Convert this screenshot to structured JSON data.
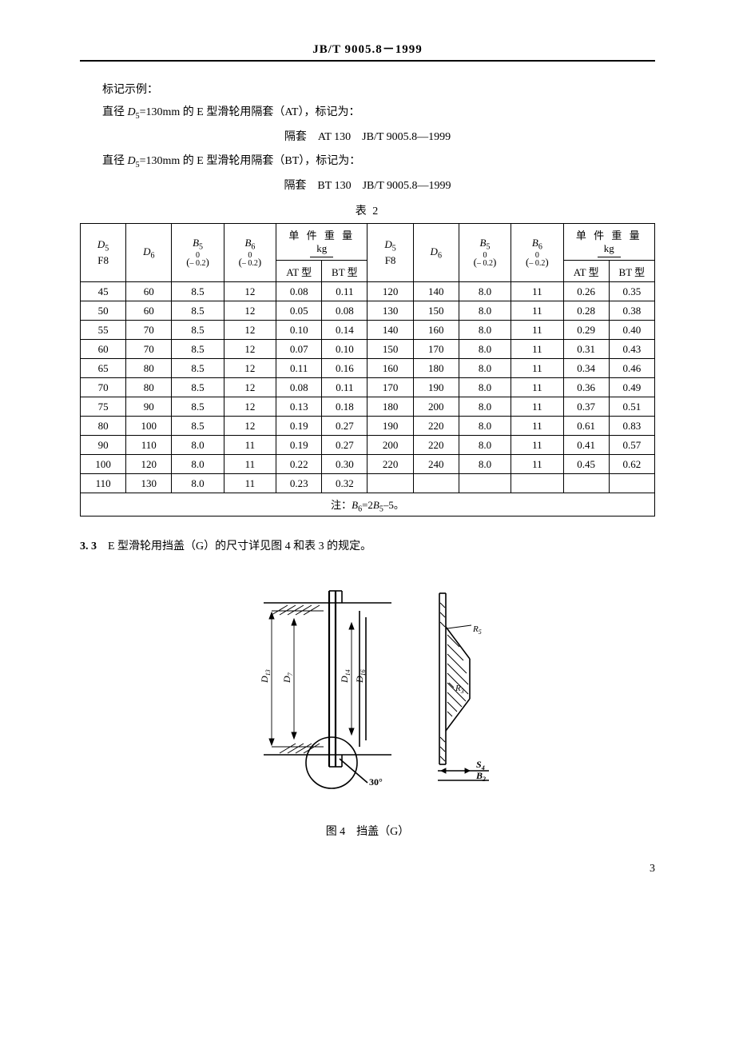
{
  "standard_code": "JB/T  9005.8－1999",
  "intro": {
    "line1": "标记示例：",
    "line2_pre": "直径 ",
    "line2_var": "D",
    "line2_sub": "5",
    "line2_post": "=130mm 的 E 型滑轮用隔套（AT），标记为：",
    "line3": "隔套　AT 130　JB/T 9005.8—1999",
    "line4_pre": "直径 ",
    "line4_var": "D",
    "line4_sub": "5",
    "line4_post": "=130mm 的 E 型滑轮用隔套（BT），标记为：",
    "line5": "隔套　BT 130　JB/T 9005.8—1999"
  },
  "table": {
    "title": "表  2",
    "hdr": {
      "D5": "D",
      "D5sub": "5",
      "D5line2": "F8",
      "D6": "D",
      "D6sub": "6",
      "B5": "B",
      "B5sub": "5",
      "B6": "B",
      "B6sub": "6",
      "tol_top": "0",
      "tol_bot": "– 0.2",
      "weight_label": "单 件 重 量",
      "weight_unit": "kg",
      "AT": "AT 型",
      "BT": "BT 型"
    },
    "left_rows": [
      [
        "45",
        "60",
        "8.5",
        "12",
        "0.08",
        "0.11"
      ],
      [
        "50",
        "60",
        "8.5",
        "12",
        "0.05",
        "0.08"
      ],
      [
        "55",
        "70",
        "8.5",
        "12",
        "0.10",
        "0.14"
      ],
      [
        "60",
        "70",
        "8.5",
        "12",
        "0.07",
        "0.10"
      ],
      [
        "65",
        "80",
        "8.5",
        "12",
        "0.11",
        "0.16"
      ],
      [
        "70",
        "80",
        "8.5",
        "12",
        "0.08",
        "0.11"
      ],
      [
        "75",
        "90",
        "8.5",
        "12",
        "0.13",
        "0.18"
      ],
      [
        "80",
        "100",
        "8.5",
        "12",
        "0.19",
        "0.27"
      ],
      [
        "90",
        "110",
        "8.0",
        "11",
        "0.19",
        "0.27"
      ],
      [
        "100",
        "120",
        "8.0",
        "11",
        "0.22",
        "0.30"
      ],
      [
        "110",
        "130",
        "8.0",
        "11",
        "0.23",
        "0.32"
      ]
    ],
    "right_rows": [
      [
        "120",
        "140",
        "8.0",
        "11",
        "0.26",
        "0.35"
      ],
      [
        "130",
        "150",
        "8.0",
        "11",
        "0.28",
        "0.38"
      ],
      [
        "140",
        "160",
        "8.0",
        "11",
        "0.29",
        "0.40"
      ],
      [
        "150",
        "170",
        "8.0",
        "11",
        "0.31",
        "0.43"
      ],
      [
        "160",
        "180",
        "8.0",
        "11",
        "0.34",
        "0.46"
      ],
      [
        "170",
        "190",
        "8.0",
        "11",
        "0.36",
        "0.49"
      ],
      [
        "180",
        "200",
        "8.0",
        "11",
        "0.37",
        "0.51"
      ],
      [
        "190",
        "220",
        "8.0",
        "11",
        "0.61",
        "0.83"
      ],
      [
        "200",
        "220",
        "8.0",
        "11",
        "0.41",
        "0.57"
      ],
      [
        "220",
        "240",
        "8.0",
        "11",
        "0.45",
        "0.62"
      ],
      [
        "",
        "",
        "",
        "",
        "",
        ""
      ]
    ],
    "note_pre": "注：",
    "note_var1": "B",
    "note_sub1": "6",
    "note_mid": "=2",
    "note_var2": "B",
    "note_sub2": "5",
    "note_post": "–5。"
  },
  "section33": {
    "num": "3. 3",
    "text": "　E 型滑轮用挡盖（G）的尺寸详见图 4 和表 3 的规定。"
  },
  "figure": {
    "caption": "图  4　挡盖（G）",
    "labels": {
      "D13": "D",
      "D13sub": "13",
      "D7": "D",
      "D7sub": "7",
      "D14": "D",
      "D14sub": "14",
      "D16": "D",
      "D16sub": "16",
      "angle": "30°",
      "S4": "S",
      "S4sub": "4",
      "B2": "B",
      "B2sub": "2",
      "R5": "R",
      "R5sub": "5",
      "R3": "R",
      "R3sub": "3"
    }
  },
  "page_number": "3",
  "styling": {
    "text_color": "#000000",
    "background": "#ffffff",
    "border_color": "#000000",
    "body_font_size_pt": 10.5,
    "header_font_size_pt": 11,
    "table_font_size_pt": 10
  }
}
